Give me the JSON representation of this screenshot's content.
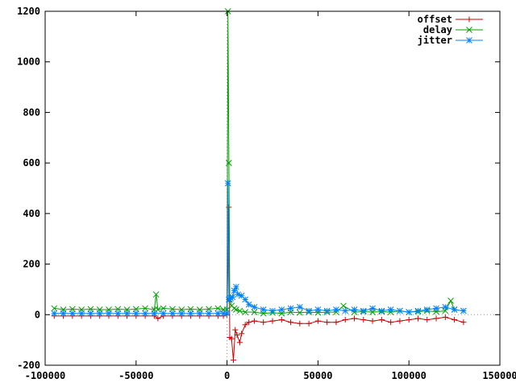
{
  "chart_data": {
    "type": "line",
    "title": "",
    "xlabel": "",
    "ylabel": "",
    "xlim": [
      -100000,
      150000
    ],
    "ylim": [
      -200,
      1200
    ],
    "x_ticks": [
      -100000,
      -50000,
      0,
      50000,
      100000,
      150000
    ],
    "y_ticks": [
      -200,
      0,
      200,
      400,
      600,
      800,
      1000,
      1200
    ],
    "x_tick_labels": [
      "-100000",
      "-50000",
      "0",
      "50000",
      "100000",
      "150000"
    ],
    "y_tick_labels": [
      "-200",
      "0",
      "200",
      "400",
      "600",
      "800",
      "1000",
      "1200"
    ],
    "grid": false,
    "zero_axes_dotted": true,
    "legend_position": "top-right",
    "series": [
      {
        "name": "offset",
        "color": "#cc0000",
        "marker": "plus",
        "x": [
          -95000,
          -90000,
          -85000,
          -80000,
          -75000,
          -70000,
          -65000,
          -60000,
          -55000,
          -50000,
          -45000,
          -40000,
          -38000,
          -35000,
          -30000,
          -25000,
          -20000,
          -15000,
          -10000,
          -5000,
          -2000,
          0,
          1000,
          1500,
          2500,
          3500,
          4500,
          5500,
          7000,
          8000,
          10000,
          12000,
          15000,
          20000,
          25000,
          30000,
          35000,
          40000,
          45000,
          50000,
          55000,
          60000,
          65000,
          70000,
          75000,
          80000,
          85000,
          90000,
          95000,
          100000,
          105000,
          110000,
          115000,
          120000,
          125000,
          130000
        ],
        "y": [
          -5,
          -5,
          -5,
          -5,
          -5,
          -5,
          -5,
          -5,
          -5,
          -5,
          -5,
          -5,
          -15,
          -5,
          -5,
          -5,
          -5,
          -5,
          -5,
          -5,
          -5,
          0,
          425,
          -90,
          -95,
          -180,
          -60,
          -80,
          -110,
          -75,
          -40,
          -30,
          -25,
          -30,
          -25,
          -20,
          -30,
          -35,
          -35,
          -25,
          -30,
          -30,
          -20,
          -15,
          -20,
          -25,
          -20,
          -30,
          -25,
          -20,
          -15,
          -20,
          -15,
          -10,
          -20,
          -30
        ]
      },
      {
        "name": "delay",
        "color": "#00a000",
        "marker": "cross",
        "x": [
          -95000,
          -90000,
          -85000,
          -80000,
          -75000,
          -70000,
          -65000,
          -60000,
          -55000,
          -50000,
          -45000,
          -40000,
          -39000,
          -38000,
          -35000,
          -30000,
          -25000,
          -20000,
          -15000,
          -10000,
          -5000,
          -2000,
          0,
          500,
          1000,
          1500,
          2500,
          4000,
          5000,
          7000,
          10000,
          15000,
          20000,
          25000,
          30000,
          35000,
          40000,
          45000,
          50000,
          55000,
          60000,
          64000,
          70000,
          75000,
          80000,
          85000,
          90000,
          95000,
          100000,
          105000,
          110000,
          115000,
          120000,
          123000,
          125000,
          130000
        ],
        "y": [
          25,
          20,
          22,
          20,
          22,
          20,
          20,
          22,
          20,
          22,
          25,
          20,
          80,
          20,
          25,
          22,
          20,
          22,
          20,
          22,
          25,
          20,
          20,
          1200,
          600,
          60,
          35,
          25,
          20,
          15,
          10,
          10,
          5,
          8,
          5,
          10,
          8,
          10,
          8,
          10,
          10,
          35,
          10,
          12,
          10,
          12,
          10,
          15,
          10,
          12,
          15,
          12,
          15,
          55,
          20,
          15
        ]
      },
      {
        "name": "jitter",
        "color": "#0080ff",
        "marker": "star",
        "x": [
          -95000,
          -90000,
          -85000,
          -80000,
          -75000,
          -70000,
          -65000,
          -60000,
          -55000,
          -50000,
          -45000,
          -40000,
          -35000,
          -30000,
          -25000,
          -20000,
          -15000,
          -10000,
          -5000,
          -2000,
          0,
          500,
          1000,
          2000,
          3000,
          4000,
          5000,
          6000,
          8000,
          10000,
          12000,
          15000,
          20000,
          25000,
          30000,
          35000,
          40000,
          45000,
          50000,
          55000,
          60000,
          65000,
          70000,
          75000,
          80000,
          85000,
          90000,
          95000,
          100000,
          105000,
          110000,
          115000,
          120000,
          125000,
          130000
        ],
        "y": [
          5,
          5,
          5,
          5,
          5,
          5,
          5,
          5,
          5,
          5,
          5,
          5,
          5,
          5,
          5,
          5,
          5,
          5,
          5,
          5,
          5,
          520,
          60,
          65,
          70,
          95,
          110,
          80,
          75,
          60,
          40,
          30,
          20,
          15,
          20,
          25,
          30,
          15,
          20,
          15,
          20,
          15,
          20,
          15,
          25,
          15,
          20,
          15,
          10,
          15,
          20,
          25,
          30,
          20,
          15
        ]
      }
    ]
  }
}
